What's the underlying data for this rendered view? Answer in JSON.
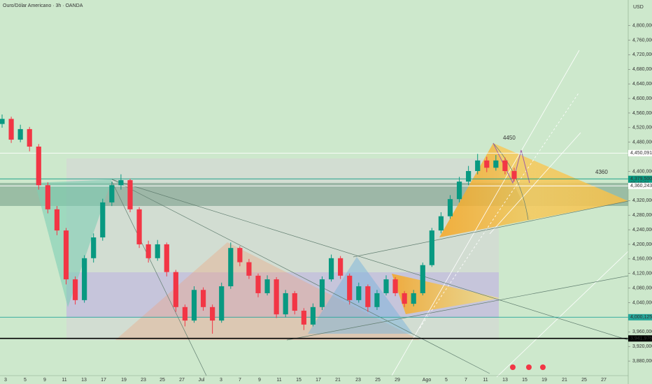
{
  "chart_data": {
    "type": "candlestick",
    "title": "Ouro/Dólar Americano · 3h · OANDA",
    "currency": "USD",
    "up_color": "#089981",
    "down_color": "#f23645",
    "ylim": [
      3840000,
      4870000
    ],
    "yticks": [
      {
        "value": 4800000,
        "label": "4,800,000"
      },
      {
        "value": 4760000,
        "label": "4,760,000"
      },
      {
        "value": 4720000,
        "label": "4,720,000"
      },
      {
        "value": 4680000,
        "label": "4,680,000"
      },
      {
        "value": 4640000,
        "label": "4,640,000"
      },
      {
        "value": 4600000,
        "label": "4,600,000"
      },
      {
        "value": 4560000,
        "label": "4,560,000"
      },
      {
        "value": 4520000,
        "label": "4,520,000"
      },
      {
        "value": 4480000,
        "label": "4,480,000"
      },
      {
        "value": 4400000,
        "label": "4,400,000"
      },
      {
        "value": 4320000,
        "label": "4,320,000"
      },
      {
        "value": 4280000,
        "label": "4,280,000"
      },
      {
        "value": 4240000,
        "label": "4,240,000"
      },
      {
        "value": 4200000,
        "label": "4,200,000"
      },
      {
        "value": 4160000,
        "label": "4,160,000"
      },
      {
        "value": 4120000,
        "label": "4,120,000"
      },
      {
        "value": 4080000,
        "label": "4,080,000"
      },
      {
        "value": 4040000,
        "label": "4,040,000"
      },
      {
        "value": 3960000,
        "label": "3,960,000"
      },
      {
        "value": 3920000,
        "label": "3,920,000"
      },
      {
        "value": 3880000,
        "label": "3,880,000"
      }
    ],
    "x_labels": [
      "3",
      "5",
      "9",
      "11",
      "13",
      "17",
      "19",
      "23",
      "25",
      "27",
      "Jul",
      "3",
      "7",
      "9",
      "11",
      "15",
      "17",
      "21",
      "23",
      "25",
      "29",
      "Ago",
      "5",
      "7",
      "11",
      "13",
      "15",
      "19",
      "21",
      "25",
      "27"
    ],
    "price_tags": [
      {
        "value": 4450091,
        "label": "4,450,091",
        "color": "#ffffff"
      },
      {
        "value": 4379500,
        "label": "4,379,500",
        "color": "#089981",
        "countdown": "03:10:01"
      },
      {
        "value": 4360243,
        "label": "4,360,243",
        "color": "#ffffff"
      },
      {
        "value": 4000125,
        "label": "4,000,125",
        "color": "#26a69a"
      },
      {
        "value": 3941976,
        "label": "3,941,976",
        "color": "#000000"
      }
    ],
    "annotations": [
      "4450",
      "4360"
    ],
    "ohlc": [
      [
        4530000,
        4556000,
        4520000,
        4544000
      ],
      [
        4544000,
        4550000,
        4478000,
        4487000
      ],
      [
        4487000,
        4528000,
        4480000,
        4516000
      ],
      [
        4516000,
        4522000,
        4455000,
        4468000
      ],
      [
        4468000,
        4475000,
        4350000,
        4362000
      ],
      [
        4362000,
        4370000,
        4285000,
        4296000
      ],
      [
        4296000,
        4305000,
        4225000,
        4238000
      ],
      [
        4238000,
        4245000,
        4090000,
        4104000
      ],
      [
        4104000,
        4112000,
        4035000,
        4047000
      ],
      [
        4047000,
        4170000,
        4040000,
        4162000
      ],
      [
        4162000,
        4230000,
        4150000,
        4219000
      ],
      [
        4219000,
        4325000,
        4210000,
        4315000
      ],
      [
        4315000,
        4372000,
        4305000,
        4362000
      ],
      [
        4362000,
        4392000,
        4350000,
        4376000
      ],
      [
        4376000,
        4380000,
        4288000,
        4296000
      ],
      [
        4296000,
        4302000,
        4190000,
        4200000
      ],
      [
        4200000,
        4210000,
        4150000,
        4162000
      ],
      [
        4162000,
        4212000,
        4155000,
        4200000
      ],
      [
        4200000,
        4205000,
        4112000,
        4124000
      ],
      [
        4124000,
        4130000,
        4015000,
        4028000
      ],
      [
        4028000,
        4035000,
        3975000,
        3991000
      ],
      [
        3991000,
        4085000,
        3985000,
        4075000
      ],
      [
        4075000,
        4082000,
        4018000,
        4028000
      ],
      [
        4028000,
        4035000,
        3955000,
        3991000
      ],
      [
        3991000,
        4095000,
        3985000,
        4085000
      ],
      [
        4085000,
        4205000,
        4078000,
        4190000
      ],
      [
        4190000,
        4195000,
        4140000,
        4151000
      ],
      [
        4151000,
        4160000,
        4105000,
        4114000
      ],
      [
        4114000,
        4120000,
        4055000,
        4066000
      ],
      [
        4066000,
        4115000,
        4060000,
        4104000
      ],
      [
        4104000,
        4110000,
        3998000,
        4008000
      ],
      [
        4008000,
        4075000,
        4000000,
        4066000
      ],
      [
        4066000,
        4072000,
        4008000,
        4018000
      ],
      [
        4018000,
        4025000,
        3965000,
        3980000
      ],
      [
        3980000,
        4038000,
        3975000,
        4028000
      ],
      [
        4028000,
        4112000,
        4020000,
        4104000
      ],
      [
        4104000,
        4172000,
        4098000,
        4162000
      ],
      [
        4162000,
        4168000,
        4105000,
        4114000
      ],
      [
        4114000,
        4120000,
        4035000,
        4047000
      ],
      [
        4047000,
        4095000,
        4040000,
        4085000
      ],
      [
        4085000,
        4090000,
        4015000,
        4028000
      ],
      [
        4028000,
        4075000,
        4020000,
        4066000
      ],
      [
        4066000,
        4115000,
        4060000,
        4104000
      ],
      [
        4104000,
        4110000,
        4058000,
        4066000
      ],
      [
        4066000,
        4072000,
        4028000,
        4037000
      ],
      [
        4037000,
        4075000,
        4030000,
        4066000
      ],
      [
        4066000,
        4150000,
        4060000,
        4143000
      ],
      [
        4143000,
        4245000,
        4138000,
        4238000
      ],
      [
        4238000,
        4288000,
        4230000,
        4277000
      ],
      [
        4277000,
        4335000,
        4270000,
        4324000
      ],
      [
        4324000,
        4385000,
        4315000,
        4372000
      ],
      [
        4372000,
        4415000,
        4362000,
        4401000
      ],
      [
        4401000,
        4448000,
        4392000,
        4430000
      ],
      [
        4430000,
        4440000,
        4398000,
        4410000
      ],
      [
        4410000,
        4445000,
        4402000,
        4430000
      ],
      [
        4430000,
        4438000,
        4392000,
        4401000
      ],
      [
        4401000,
        4410000,
        4372000,
        4379000
      ]
    ]
  }
}
